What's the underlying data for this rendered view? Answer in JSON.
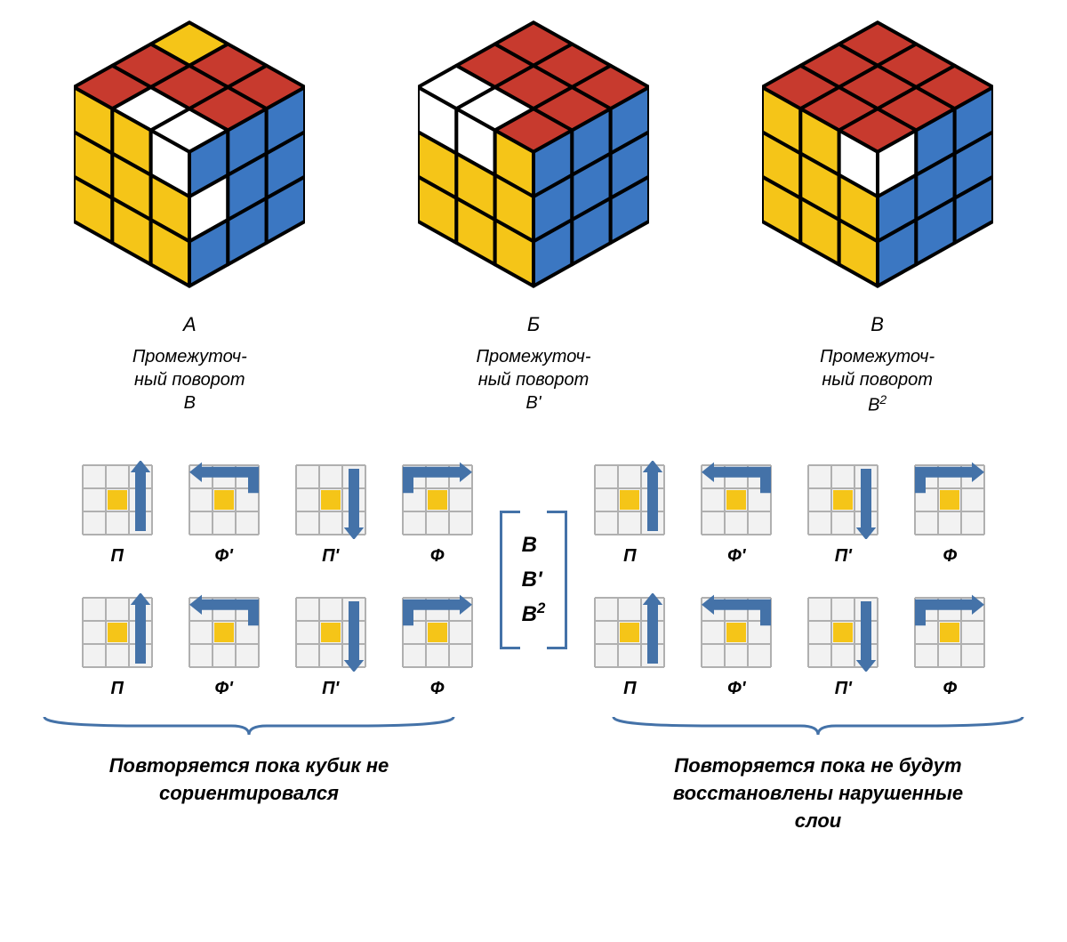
{
  "colors": {
    "red": "#c73a2e",
    "yellow": "#f5c518",
    "blue": "#3b77c2",
    "white": "#ffffff",
    "black": "#000000",
    "arrow": "#4472a8",
    "grid_line": "#b0b0b0",
    "grid_bg": "#f2f2f2"
  },
  "cubes": [
    {
      "label": "А",
      "caption": "Промежуточ-\nный поворот\nВ",
      "top": [
        [
          "yellow",
          "red",
          "red"
        ],
        [
          "red",
          "red",
          "red"
        ],
        [
          "red",
          "white",
          "white"
        ]
      ],
      "left": [
        [
          "yellow",
          "yellow",
          "white"
        ],
        [
          "yellow",
          "yellow",
          "yellow"
        ],
        [
          "yellow",
          "yellow",
          "yellow"
        ]
      ],
      "right": [
        [
          "blue",
          "blue",
          "blue"
        ],
        [
          "white",
          "blue",
          "blue"
        ],
        [
          "blue",
          "blue",
          "blue"
        ]
      ]
    },
    {
      "label": "Б",
      "caption": "Промежуточ-\nный поворот\nВ'",
      "top": [
        [
          "red",
          "red",
          "red"
        ],
        [
          "red",
          "red",
          "red"
        ],
        [
          "white",
          "white",
          "red"
        ]
      ],
      "left": [
        [
          "white",
          "white",
          "yellow"
        ],
        [
          "yellow",
          "yellow",
          "yellow"
        ],
        [
          "yellow",
          "yellow",
          "yellow"
        ]
      ],
      "right": [
        [
          "blue",
          "blue",
          "blue"
        ],
        [
          "blue",
          "blue",
          "blue"
        ],
        [
          "blue",
          "blue",
          "blue"
        ]
      ]
    },
    {
      "label": "В",
      "caption": "Промежуточ-\nный поворот\nВ²",
      "top": [
        [
          "red",
          "red",
          "red"
        ],
        [
          "red",
          "red",
          "red"
        ],
        [
          "red",
          "red",
          "red"
        ]
      ],
      "left": [
        [
          "yellow",
          "yellow",
          "white"
        ],
        [
          "yellow",
          "yellow",
          "yellow"
        ],
        [
          "yellow",
          "yellow",
          "yellow"
        ]
      ],
      "right": [
        [
          "white",
          "blue",
          "blue"
        ],
        [
          "blue",
          "blue",
          "blue"
        ],
        [
          "blue",
          "blue",
          "blue"
        ]
      ]
    }
  ],
  "center_labels": [
    "В",
    "В'",
    "В²"
  ],
  "move_sequence": [
    "П",
    "Ф'",
    "П'",
    "Ф"
  ],
  "move_types": [
    "R",
    "Fp",
    "Rp",
    "F"
  ],
  "bottom_captions": [
    "Повторяется пока кубик не\nсориентировался",
    "Повторяется пока не будут\nвосстановлены нарушенные\nслои"
  ],
  "grid_size": 78,
  "cube_size": 260
}
